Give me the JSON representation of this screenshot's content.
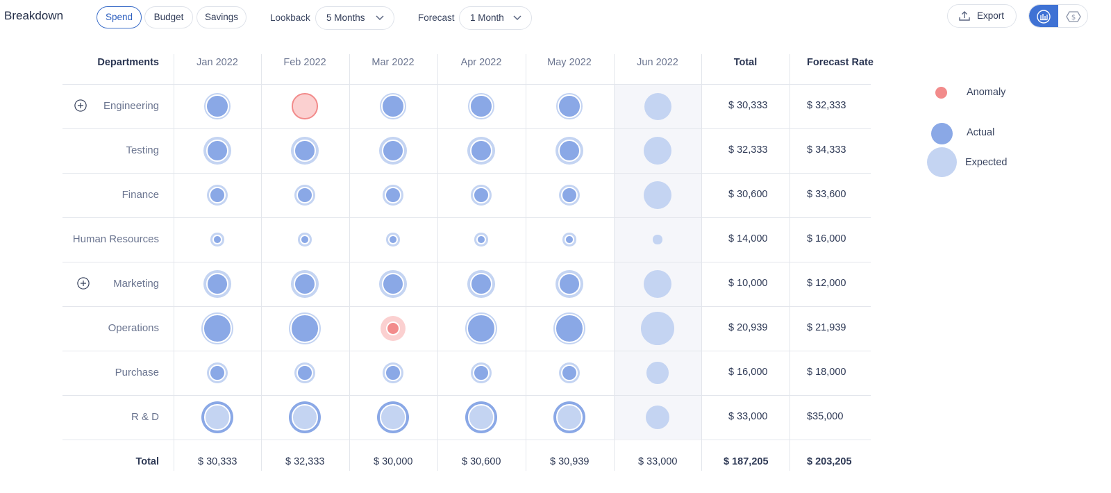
{
  "header": {
    "title": "Breakdown",
    "tabs": [
      {
        "label": "Spend",
        "active": true
      },
      {
        "label": "Budget",
        "active": false
      },
      {
        "label": "Savings",
        "active": false
      }
    ],
    "lookback": {
      "label": "Lookback",
      "value": "5 Months"
    },
    "forecast": {
      "label": "Forecast",
      "value": "1 Month"
    },
    "export_label": "Export"
  },
  "table": {
    "columns": {
      "departments": "Departments",
      "months": [
        "Jan 2022",
        "Feb 2022",
        "Mar 2022",
        "Apr 2022",
        "May 2022",
        "Jun 2022"
      ],
      "total": "Total",
      "forecast_rate": "Forecast Rate"
    },
    "rows": [
      {
        "name": "Engineering",
        "expandable": true,
        "total": "$ 30,333",
        "forecast": "$ 32,333",
        "cells": [
          {
            "type": "actual",
            "actual": 0.56,
            "expected": 0.62
          },
          {
            "type": "anomaly",
            "actual": 0.56,
            "expected": 0.62
          },
          {
            "type": "actual",
            "actual": 0.56,
            "expected": 0.62
          },
          {
            "type": "actual",
            "actual": 0.56,
            "expected": 0.62
          },
          {
            "type": "actual",
            "actual": 0.56,
            "expected": 0.62
          },
          {
            "type": "forecast",
            "expected": 0.65
          }
        ]
      },
      {
        "name": "Testing",
        "expandable": false,
        "total": "$ 32,333",
        "forecast": "$ 34,333",
        "cells": [
          {
            "type": "actual",
            "actual": 0.53,
            "expected": 0.66
          },
          {
            "type": "actual",
            "actual": 0.53,
            "expected": 0.66
          },
          {
            "type": "actual",
            "actual": 0.53,
            "expected": 0.66
          },
          {
            "type": "actual",
            "actual": 0.53,
            "expected": 0.66
          },
          {
            "type": "actual",
            "actual": 0.53,
            "expected": 0.66
          },
          {
            "type": "forecast",
            "expected": 0.68
          }
        ]
      },
      {
        "name": "Finance",
        "expandable": false,
        "total": "$ 30,600",
        "forecast": "$ 33,600",
        "cells": [
          {
            "type": "actual",
            "actual": 0.4,
            "expected": 0.5
          },
          {
            "type": "actual",
            "actual": 0.4,
            "expected": 0.5
          },
          {
            "type": "actual",
            "actual": 0.4,
            "expected": 0.5
          },
          {
            "type": "actual",
            "actual": 0.4,
            "expected": 0.5
          },
          {
            "type": "actual",
            "actual": 0.4,
            "expected": 0.5
          },
          {
            "type": "forecast",
            "expected": 0.68
          }
        ]
      },
      {
        "name": "Human Resources",
        "expandable": false,
        "total": "$ 14,000",
        "forecast": "$ 16,000",
        "cells": [
          {
            "type": "actual",
            "actual": 0.23,
            "expected": 0.32
          },
          {
            "type": "actual",
            "actual": 0.23,
            "expected": 0.32
          },
          {
            "type": "actual",
            "actual": 0.23,
            "expected": 0.32
          },
          {
            "type": "actual",
            "actual": 0.23,
            "expected": 0.32
          },
          {
            "type": "actual",
            "actual": 0.23,
            "expected": 0.32
          },
          {
            "type": "forecast",
            "expected": 0.22
          }
        ]
      },
      {
        "name": "Marketing",
        "expandable": true,
        "total": "$ 10,000",
        "forecast": "$ 12,000",
        "cells": [
          {
            "type": "actual",
            "actual": 0.53,
            "expected": 0.66
          },
          {
            "type": "actual",
            "actual": 0.53,
            "expected": 0.66
          },
          {
            "type": "actual",
            "actual": 0.53,
            "expected": 0.66
          },
          {
            "type": "actual",
            "actual": 0.53,
            "expected": 0.66
          },
          {
            "type": "actual",
            "actual": 0.53,
            "expected": 0.66
          },
          {
            "type": "forecast",
            "expected": 0.68
          }
        ]
      },
      {
        "name": "Operations",
        "expandable": false,
        "total": "$ 20,939",
        "forecast": "$ 21,939",
        "cells": [
          {
            "type": "actual",
            "actual": 0.69,
            "expected": 0.76
          },
          {
            "type": "actual",
            "actual": 0.69,
            "expected": 0.76
          },
          {
            "type": "anomaly",
            "actual": 0.33,
            "expected": 0.6
          },
          {
            "type": "actual",
            "actual": 0.69,
            "expected": 0.76
          },
          {
            "type": "actual",
            "actual": 0.69,
            "expected": 0.76
          },
          {
            "type": "forecast",
            "expected": 0.79
          }
        ]
      },
      {
        "name": "Purchase",
        "expandable": false,
        "total": "$ 16,000",
        "forecast": "$ 18,000",
        "cells": [
          {
            "type": "actual",
            "actual": 0.4,
            "expected": 0.5
          },
          {
            "type": "actual",
            "actual": 0.4,
            "expected": 0.5
          },
          {
            "type": "actual",
            "actual": 0.4,
            "expected": 0.5
          },
          {
            "type": "actual",
            "actual": 0.4,
            "expected": 0.5
          },
          {
            "type": "actual",
            "actual": 0.4,
            "expected": 0.5
          },
          {
            "type": "forecast",
            "expected": 0.52
          }
        ]
      },
      {
        "name": "R & D",
        "expandable": false,
        "total": "$ 33,000",
        "forecast": "$35,000",
        "cells": [
          {
            "type": "over",
            "actual": 0.77,
            "expected": 0.62
          },
          {
            "type": "over",
            "actual": 0.77,
            "expected": 0.62
          },
          {
            "type": "over",
            "actual": 0.77,
            "expected": 0.62
          },
          {
            "type": "over",
            "actual": 0.77,
            "expected": 0.62
          },
          {
            "type": "over",
            "actual": 0.77,
            "expected": 0.62
          },
          {
            "type": "forecast",
            "expected": 0.58
          }
        ]
      }
    ],
    "totals": {
      "label": "Total",
      "months": [
        "$ 30,333",
        "$ 32,333",
        "$ 30,000",
        "$ 30,600",
        "$ 30,939",
        "$ 33,000"
      ],
      "total": "$ 187,205",
      "forecast": "$ 203,205"
    }
  },
  "legend": {
    "anomaly": "Anomaly",
    "actual": "Actual",
    "expected": "Expected"
  },
  "colors": {
    "actual": "#8aa8e6",
    "expected": "#c4d4f2",
    "anomaly": "#f28b8b",
    "anomaly_bg": "#fbd0d0",
    "accent": "#3f72d4"
  }
}
